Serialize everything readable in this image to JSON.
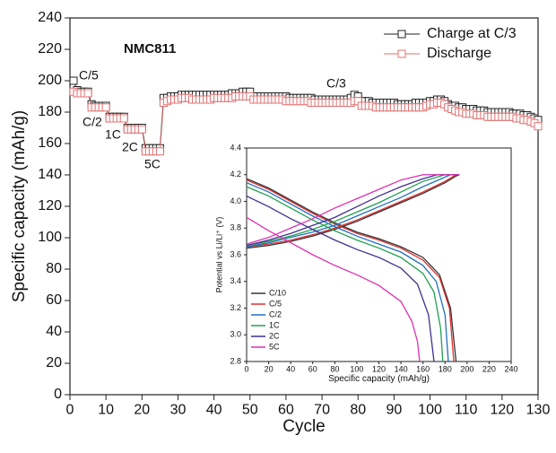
{
  "chart_data": [
    {
      "type": "line",
      "xlabel": "Cycle",
      "ylabel": "Specific capacity (mAh/g)",
      "annotations": [
        "NMC811",
        "C/5",
        "C/2",
        "1C",
        "2C",
        "5C",
        "C/3"
      ],
      "xlim": [
        0,
        130
      ],
      "xticks": [
        0,
        10,
        20,
        30,
        40,
        50,
        60,
        70,
        80,
        90,
        100,
        110,
        120,
        130
      ],
      "ylim": [
        0,
        240
      ],
      "yticks": [
        0,
        20,
        40,
        60,
        80,
        100,
        120,
        140,
        160,
        180,
        200,
        220,
        240
      ],
      "x": [
        1,
        2,
        3,
        4,
        5,
        6,
        7,
        8,
        9,
        10,
        11,
        12,
        13,
        14,
        15,
        16,
        17,
        18,
        19,
        20,
        21,
        22,
        23,
        24,
        25,
        26,
        27,
        28,
        29,
        30,
        31,
        32,
        33,
        34,
        35,
        36,
        37,
        38,
        39,
        40,
        41,
        42,
        43,
        44,
        45,
        46,
        47,
        48,
        49,
        50,
        51,
        52,
        53,
        54,
        55,
        56,
        57,
        58,
        59,
        60,
        61,
        62,
        63,
        64,
        65,
        66,
        67,
        68,
        69,
        70,
        71,
        72,
        73,
        74,
        75,
        76,
        77,
        78,
        79,
        80,
        81,
        82,
        83,
        84,
        85,
        86,
        87,
        88,
        89,
        90,
        91,
        92,
        93,
        94,
        95,
        96,
        97,
        98,
        99,
        100,
        101,
        102,
        103,
        104,
        105,
        106,
        107,
        108,
        109,
        110,
        111,
        112,
        113,
        114,
        115,
        116,
        117,
        118,
        119,
        120,
        121,
        122,
        123,
        124,
        125,
        126,
        127,
        128,
        129,
        130
      ],
      "series": [
        {
          "name": "Charge at C/3",
          "color": "#222222",
          "values": [
            200,
            194,
            193,
            193,
            193,
            185,
            184,
            184,
            184,
            184,
            177,
            177,
            177,
            177,
            177,
            170,
            170,
            170,
            170,
            170,
            157,
            157,
            157,
            157,
            157,
            189,
            189,
            190,
            190,
            190,
            191,
            191,
            191,
            191,
            191,
            191,
            191,
            191,
            191,
            191,
            191,
            191,
            191,
            191,
            192,
            192,
            192,
            193,
            193,
            193,
            190,
            190,
            190,
            190,
            190,
            190,
            190,
            190,
            190,
            190,
            189,
            189,
            189,
            189,
            189,
            189,
            189,
            188,
            188,
            188,
            188,
            188,
            188,
            188,
            188,
            188,
            188,
            189,
            191,
            190,
            187,
            187,
            187,
            186,
            186,
            186,
            186,
            186,
            186,
            186,
            185,
            185,
            185,
            185,
            185,
            186,
            186,
            186,
            186,
            187,
            187,
            188,
            188,
            187,
            185,
            184,
            184,
            183,
            183,
            182,
            182,
            182,
            181,
            181,
            181,
            180,
            180,
            180,
            180,
            180,
            180,
            180,
            179,
            179,
            179,
            178,
            178,
            177,
            176,
            175
          ]
        },
        {
          "name": "Discharge",
          "color": "#e07070",
          "values": [
            193,
            192,
            192,
            192,
            192,
            183,
            183,
            183,
            183,
            183,
            176,
            176,
            176,
            176,
            176,
            169,
            169,
            169,
            169,
            169,
            155,
            155,
            155,
            155,
            155,
            186,
            187,
            188,
            188,
            188,
            189,
            189,
            189,
            188,
            188,
            188,
            188,
            188,
            188,
            189,
            189,
            189,
            189,
            189,
            189,
            190,
            190,
            190,
            190,
            190,
            188,
            188,
            188,
            188,
            188,
            188,
            188,
            188,
            188,
            187,
            187,
            187,
            187,
            187,
            187,
            187,
            186,
            186,
            186,
            186,
            186,
            186,
            186,
            186,
            186,
            186,
            186,
            186,
            187,
            187,
            184,
            184,
            184,
            184,
            183,
            183,
            183,
            183,
            183,
            183,
            183,
            183,
            183,
            183,
            183,
            183,
            183,
            183,
            184,
            185,
            185,
            186,
            186,
            185,
            183,
            182,
            181,
            180,
            180,
            179,
            179,
            179,
            178,
            178,
            178,
            177,
            177,
            177,
            177,
            177,
            177,
            177,
            177,
            176,
            176,
            175,
            175,
            174,
            173,
            171
          ]
        }
      ]
    },
    {
      "type": "line",
      "xlabel": "Specific capacity (mAh/g)",
      "ylabel": "Potential vs Li/Li⁺ (V)",
      "xlim": [
        0,
        240
      ],
      "xticks": [
        0,
        20,
        40,
        60,
        80,
        100,
        120,
        140,
        160,
        180,
        200,
        220,
        240
      ],
      "ylim": [
        2.8,
        4.4
      ],
      "yticks": [
        2.8,
        {
          "value": 3,
          "label": "3.0"
        },
        3.2,
        3.4,
        3.6,
        3.8,
        {
          "value": 4,
          "label": "4.0"
        },
        4.2,
        4.4
      ],
      "series": [
        {
          "name": "C/10",
          "color": "#333333",
          "charge": {
            "x": [
              0,
              20,
              40,
              60,
              80,
              100,
              120,
              140,
              160,
              180,
              190,
              193
            ],
            "y": [
              3.65,
              3.67,
              3.7,
              3.74,
              3.79,
              3.85,
              3.92,
              3.99,
              4.06,
              4.14,
              4.19,
              4.2
            ]
          },
          "discharge": {
            "x": [
              0,
              20,
              40,
              60,
              80,
              100,
              120,
              140,
              160,
              175,
              185,
              190
            ],
            "y": [
              4.17,
              4.1,
              4.01,
              3.92,
              3.84,
              3.77,
              3.72,
              3.66,
              3.58,
              3.45,
              3.2,
              2.8
            ]
          }
        },
        {
          "name": "C/5",
          "color": "#e03030",
          "charge": {
            "x": [
              0,
              20,
              40,
              60,
              80,
              100,
              120,
              140,
              160,
              180,
              190,
              193
            ],
            "y": [
              3.66,
              3.68,
              3.71,
              3.75,
              3.8,
              3.86,
              3.93,
              4.0,
              4.07,
              4.15,
              4.2,
              4.2
            ]
          },
          "discharge": {
            "x": [
              0,
              20,
              40,
              60,
              80,
              100,
              120,
              140,
              160,
              175,
              184,
              188
            ],
            "y": [
              4.16,
              4.09,
              4.0,
              3.91,
              3.83,
              3.76,
              3.71,
              3.65,
              3.56,
              3.43,
              3.2,
              2.8
            ]
          }
        },
        {
          "name": "C/2",
          "color": "#2070c0",
          "charge": {
            "x": [
              0,
              20,
              40,
              60,
              80,
              100,
              120,
              140,
              160,
              185,
              193
            ],
            "y": [
              3.66,
              3.69,
              3.73,
              3.77,
              3.82,
              3.89,
              3.96,
              4.03,
              4.11,
              4.2,
              4.2
            ]
          },
          "discharge": {
            "x": [
              0,
              20,
              40,
              60,
              80,
              100,
              120,
              140,
              160,
              172,
              180,
              183
            ],
            "y": [
              4.14,
              4.07,
              3.98,
              3.89,
              3.81,
              3.74,
              3.68,
              3.62,
              3.52,
              3.4,
              3.15,
              2.8
            ]
          }
        },
        {
          "name": "1C",
          "color": "#20a050",
          "charge": {
            "x": [
              0,
              20,
              40,
              60,
              80,
              100,
              120,
              140,
              160,
              180,
              193
            ],
            "y": [
              3.67,
              3.7,
              3.74,
              3.79,
              3.85,
              3.92,
              3.99,
              4.07,
              4.15,
              4.2,
              4.2
            ]
          },
          "discharge": {
            "x": [
              0,
              20,
              40,
              60,
              80,
              100,
              120,
              140,
              160,
              170,
              176,
              178
            ],
            "y": [
              4.11,
              4.04,
              3.95,
              3.86,
              3.78,
              3.71,
              3.65,
              3.58,
              3.46,
              3.32,
              3.05,
              2.8
            ]
          }
        },
        {
          "name": "2C",
          "color": "#403090",
          "charge": {
            "x": [
              0,
              20,
              40,
              60,
              80,
              100,
              120,
              140,
              160,
              173,
              193
            ],
            "y": [
              3.67,
              3.71,
              3.76,
              3.82,
              3.88,
              3.96,
              4.04,
              4.11,
              4.17,
              4.2,
              4.2
            ]
          },
          "discharge": {
            "x": [
              0,
              20,
              40,
              60,
              80,
              100,
              120,
              140,
              155,
              165,
              170
            ],
            "y": [
              4.04,
              3.96,
              3.87,
              3.79,
              3.71,
              3.64,
              3.58,
              3.5,
              3.38,
              3.15,
              2.8
            ]
          }
        },
        {
          "name": "5C",
          "color": "#e030b0",
          "charge": {
            "x": [
              0,
              20,
              40,
              60,
              80,
              100,
              120,
              140,
              160,
              193
            ],
            "y": [
              3.68,
              3.73,
              3.8,
              3.87,
              3.95,
              4.02,
              4.09,
              4.16,
              4.2,
              4.2
            ]
          },
          "discharge": {
            "x": [
              0,
              20,
              40,
              60,
              80,
              100,
              120,
              140,
              150,
              155,
              157
            ],
            "y": [
              3.88,
              3.78,
              3.69,
              3.6,
              3.52,
              3.45,
              3.37,
              3.25,
              3.1,
              2.95,
              2.8
            ]
          }
        }
      ]
    }
  ]
}
